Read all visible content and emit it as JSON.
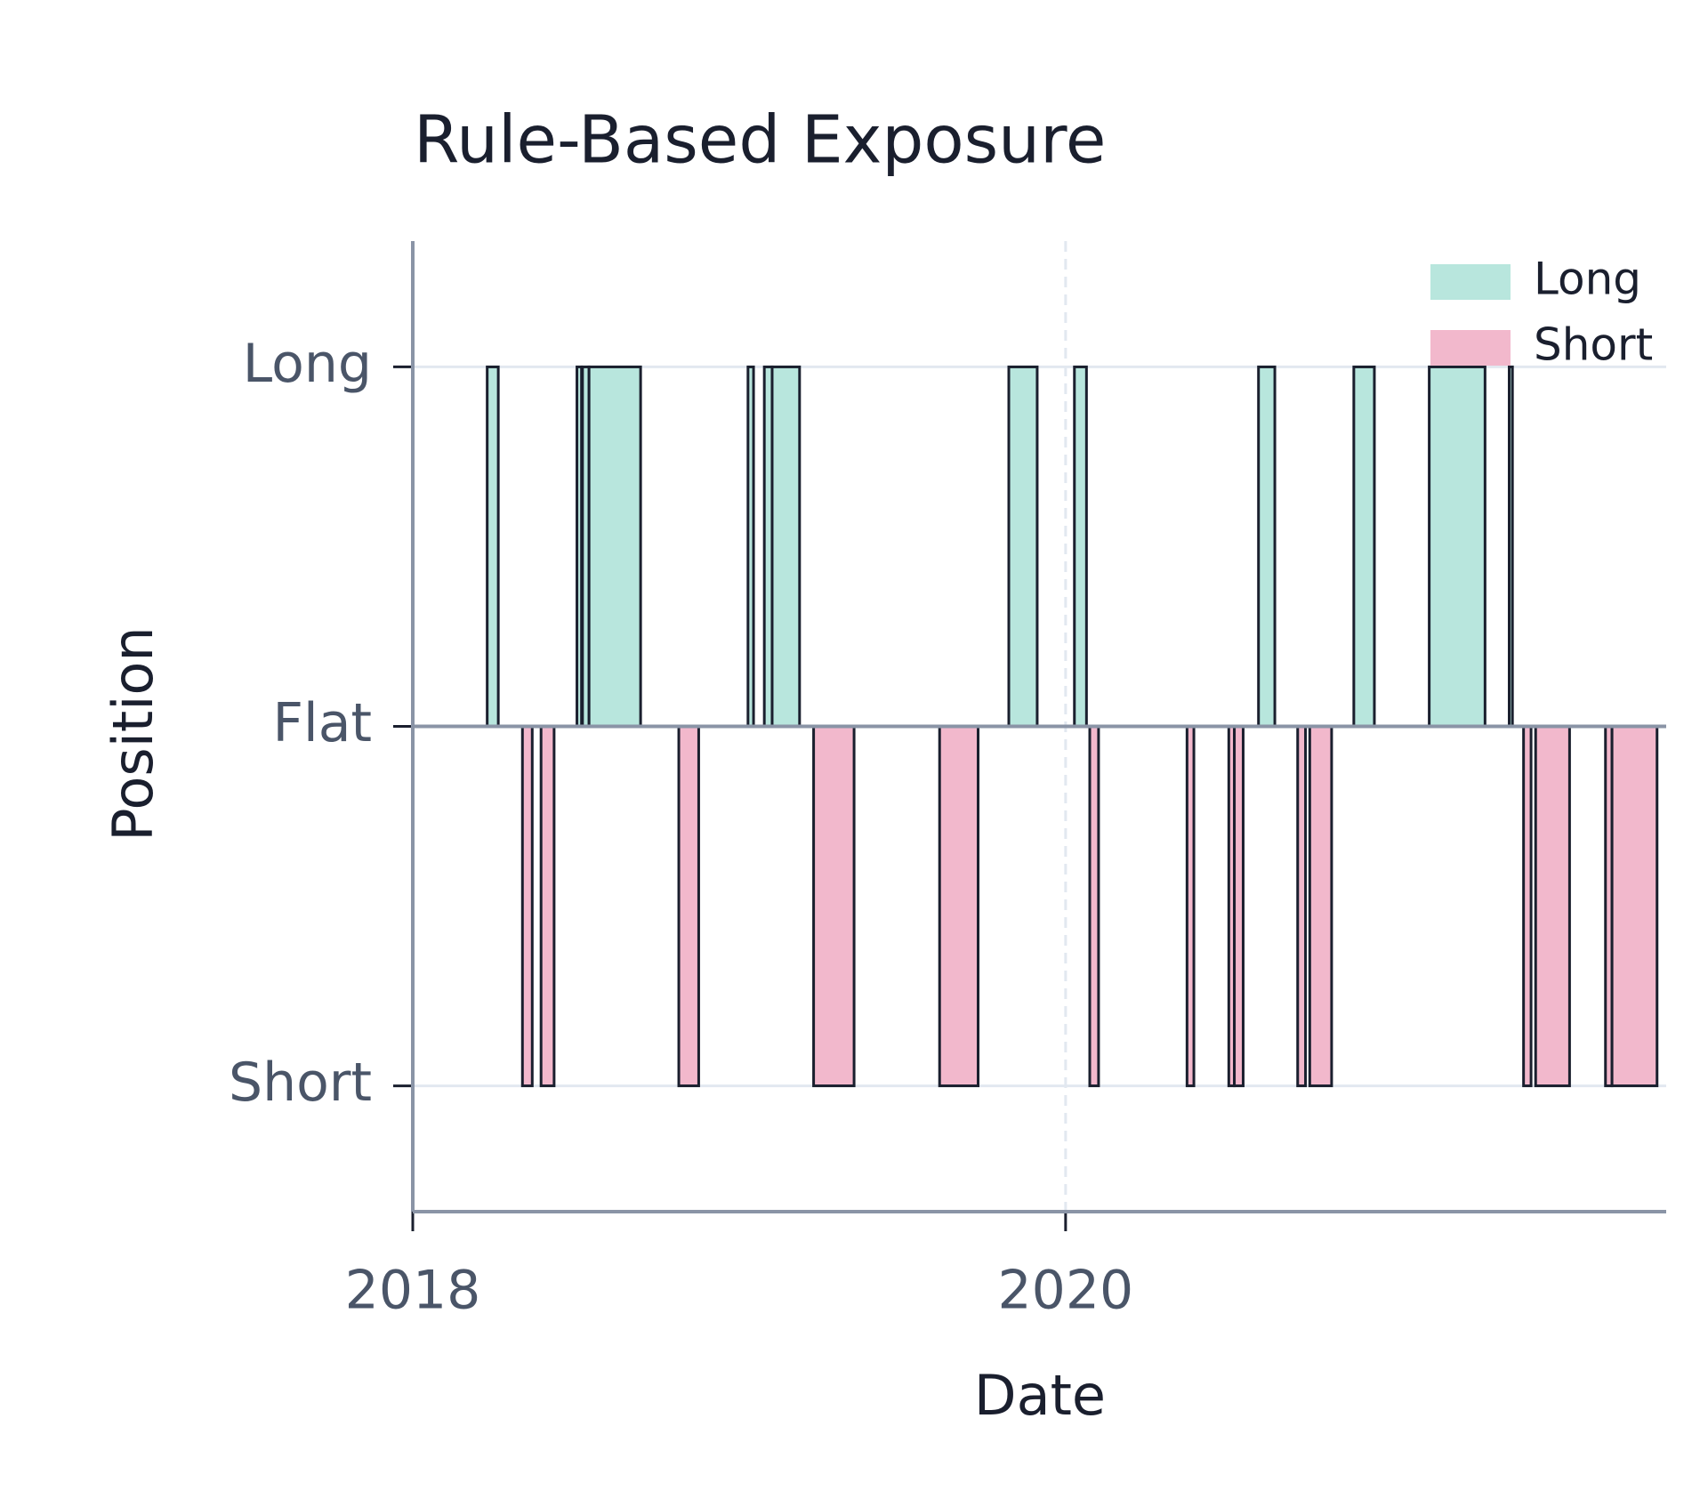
{
  "chart_data": {
    "type": "exposure",
    "title": "Rule-Based Exposure",
    "xlabel": "Date",
    "ylabel": "Position",
    "xlim": [
      2018,
      2021.84
    ],
    "xticks": [
      2018,
      2020
    ],
    "xgrid": true,
    "ylim": [
      -1.35,
      1.35
    ],
    "yticks": [
      {
        "value": -1,
        "label": "Short"
      },
      {
        "value": 0,
        "label": "Flat"
      },
      {
        "value": 1,
        "label": "Long"
      }
    ],
    "grid": true,
    "legend": "upper right",
    "series": [
      {
        "name": "Long",
        "color": "#b8e6dd",
        "start": [
          2018.228,
          2018.503,
          2018.52,
          2018.54,
          2019.027,
          2019.077,
          2019.101,
          2019.826,
          2020.027,
          2020.591,
          2020.883,
          2021.114,
          2021.359
        ],
        "end": [
          2018.262,
          2018.517,
          2018.54,
          2018.698,
          2019.044,
          2019.101,
          2019.185,
          2019.913,
          2020.064,
          2020.641,
          2020.946,
          2021.285,
          2021.369
        ],
        "values": [
          1,
          1,
          1,
          1,
          1,
          1,
          1,
          1,
          1,
          1,
          1,
          1,
          1
        ]
      },
      {
        "name": "Short",
        "color": "#f2b8cc",
        "start": [
          2018.336,
          2018.393,
          2018.815,
          2019.228,
          2019.614,
          2020.074,
          2020.372,
          2020.5,
          2020.517,
          2020.711,
          2020.748,
          2021.403,
          2021.44,
          2021.654,
          2021.674
        ],
        "end": [
          2018.366,
          2018.433,
          2018.876,
          2019.352,
          2019.732,
          2020.101,
          2020.393,
          2020.517,
          2020.544,
          2020.735,
          2020.815,
          2021.426,
          2021.544,
          2021.674,
          2021.812
        ],
        "values": [
          -1,
          -1,
          -1,
          -1,
          -1,
          -1,
          -1,
          -1,
          -1,
          -1,
          -1,
          -1,
          -1,
          -1,
          -1
        ]
      }
    ]
  }
}
